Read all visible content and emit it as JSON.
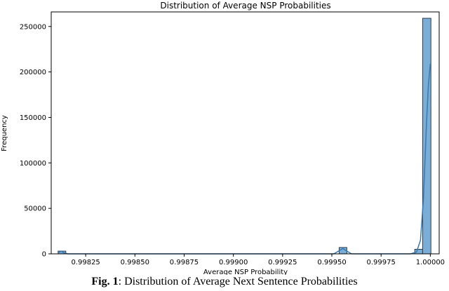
{
  "chart_data": {
    "type": "bar",
    "title": "Distribution of Average NSP Probabilities",
    "xlabel": "Average NSP Probability",
    "ylabel": "Frequency",
    "xlim": [
      0.998075,
      1.000045
    ],
    "ylim": [
      0,
      266000
    ],
    "x_ticks": [
      0.99825,
      0.9985,
      0.99875,
      0.999,
      0.99925,
      0.9995,
      0.99975,
      1.0
    ],
    "x_tick_labels": [
      "0.99825",
      "0.99850",
      "0.99875",
      "0.99900",
      "0.99925",
      "0.99950",
      "0.99975",
      "1.00000"
    ],
    "y_ticks": [
      0,
      50000,
      100000,
      150000,
      200000,
      250000
    ],
    "y_tick_labels": [
      "0",
      "50000",
      "100000",
      "150000",
      "200000",
      "250000"
    ],
    "bins": [
      {
        "x0": 0.99811,
        "x1": 0.998149,
        "value": 3000
      },
      {
        "x0": 0.999537,
        "x1": 0.999576,
        "value": 7000
      },
      {
        "x0": 0.999921,
        "x1": 0.999961,
        "value": 5000
      },
      {
        "x0": 0.999961,
        "x1": 1.000003,
        "value": 259000
      }
    ],
    "kde_curve": [
      [
        0.99811,
        1000
      ],
      [
        0.998125,
        3000
      ],
      [
        0.99814,
        1000
      ],
      [
        0.99816,
        0
      ],
      [
        0.99951,
        0
      ],
      [
        0.99953,
        2500
      ],
      [
        0.999556,
        5800
      ],
      [
        0.99958,
        2500
      ],
      [
        0.9996,
        0
      ],
      [
        0.9999,
        0
      ],
      [
        0.99993,
        2000
      ],
      [
        0.99995,
        15000
      ],
      [
        0.999965,
        60000
      ],
      [
        0.99998,
        140000
      ],
      [
        0.99999,
        185000
      ],
      [
        1.0,
        209000
      ]
    ],
    "colors": {
      "bar_fill": "#7aaed6",
      "bar_stroke": "#2b3e50",
      "kde": "#3a78b0",
      "axis": "#000000"
    },
    "grid": false
  },
  "caption": {
    "label": "Fig. 1",
    "text": ": Distribution of Average Next Sentence Probabilities"
  }
}
